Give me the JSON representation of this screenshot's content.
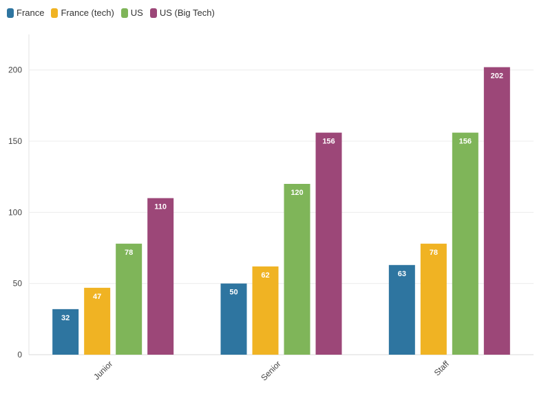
{
  "chart_data": {
    "type": "bar",
    "title": "",
    "xlabel": "",
    "ylabel": "",
    "categories": [
      "Junior",
      "Senior",
      "Staff"
    ],
    "ylim": [
      0,
      225
    ],
    "yticks": [
      0,
      50,
      100,
      150,
      200
    ],
    "grid": true,
    "legend_position": "top-left",
    "series": [
      {
        "name": "France",
        "color": "#2e75a0",
        "values": [
          32,
          50,
          63
        ]
      },
      {
        "name": "France (tech)",
        "color": "#f0b323",
        "values": [
          47,
          62,
          78
        ]
      },
      {
        "name": "US",
        "color": "#7fb559",
        "values": [
          78,
          120,
          156
        ]
      },
      {
        "name": "US (Big Tech)",
        "color": "#9c4778",
        "values": [
          110,
          156,
          202
        ]
      }
    ]
  }
}
